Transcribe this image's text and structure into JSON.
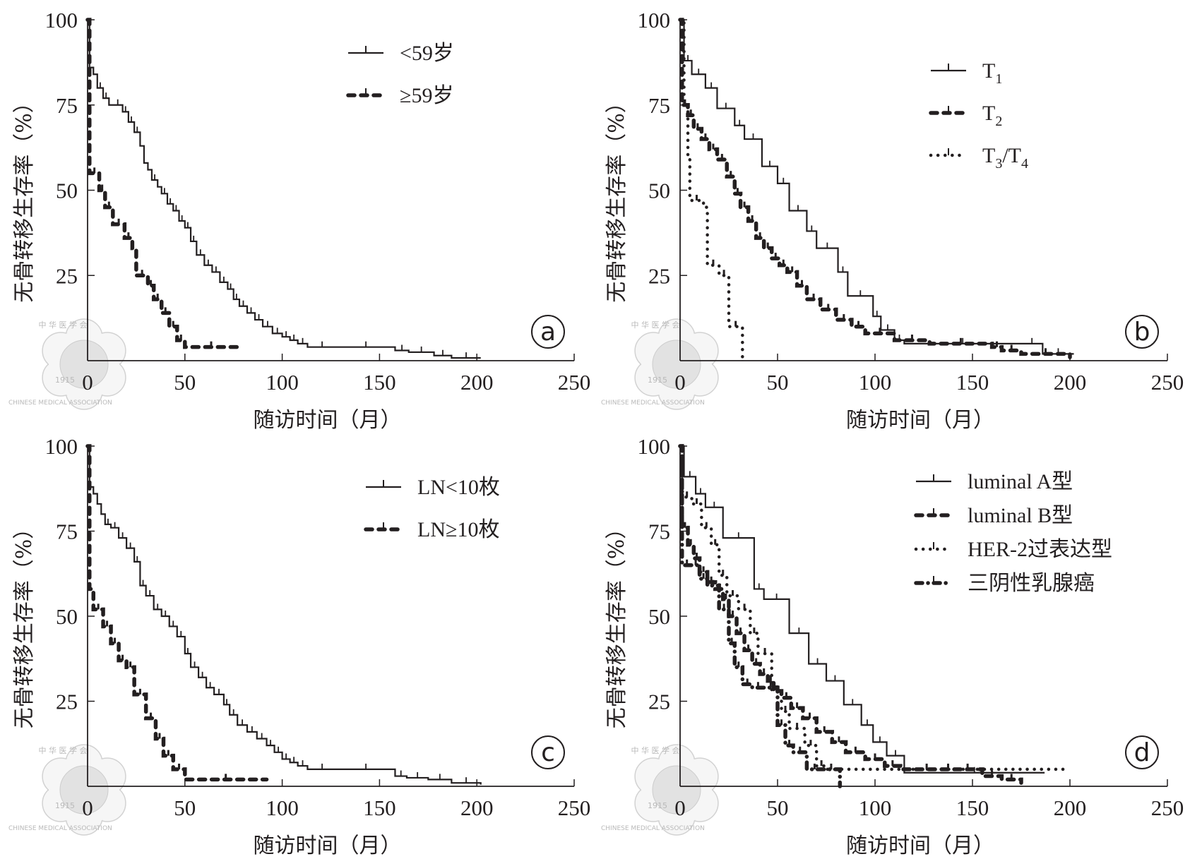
{
  "figure": {
    "y_axis_title": "无骨转移生存率（%）",
    "x_axis_title": "随访时间（月）",
    "watermark": {
      "top": "中 华 医 学 会",
      "bottom": "CHINESE MEDICAL ASSOCIATION",
      "year": "1915"
    }
  },
  "chart_data": [
    {
      "type": "line",
      "panel_label": "a",
      "title": "",
      "xlabel": "随访时间（月）",
      "ylabel": "无骨转移生存率（%）",
      "xlim": [
        0,
        250
      ],
      "ylim": [
        0,
        100
      ],
      "xticks": [
        0,
        50,
        100,
        150,
        200,
        250
      ],
      "yticks": [
        25,
        50,
        75,
        100
      ],
      "grid": false,
      "legend_position": "top-right",
      "series": [
        {
          "name": "<59岁",
          "style": "solid",
          "x": [
            0,
            1,
            3,
            5,
            8,
            11,
            13,
            18,
            21,
            24,
            27,
            29,
            31,
            33,
            36,
            38,
            41,
            44,
            47,
            50,
            53,
            56,
            60,
            64,
            68,
            72,
            75,
            78,
            82,
            86,
            90,
            95,
            100,
            104,
            108,
            113,
            128,
            158,
            165,
            178,
            187,
            202
          ],
          "y": [
            100,
            86,
            84,
            80,
            77,
            75,
            75,
            73,
            70,
            67,
            63,
            58,
            56,
            53,
            51,
            49,
            46,
            44,
            41,
            39,
            35,
            31,
            28,
            26,
            23,
            21,
            18,
            16,
            14,
            12,
            10,
            8,
            7,
            6,
            5,
            4,
            4,
            3,
            2.5,
            1.5,
            0.8,
            0.8
          ]
        },
        {
          "name": "≥59岁",
          "style": "dashed",
          "x": [
            0,
            1,
            6,
            9,
            13,
            19,
            23,
            25,
            31,
            34,
            38,
            42,
            46,
            50,
            77
          ],
          "y": [
            100,
            55,
            50,
            45,
            40,
            36,
            33,
            25,
            22,
            18,
            14,
            10,
            6,
            4,
            4
          ]
        }
      ]
    },
    {
      "type": "line",
      "panel_label": "b",
      "title": "",
      "xlabel": "随访时间（月）",
      "ylabel": "无骨转移生存率（%）",
      "xlim": [
        0,
        250
      ],
      "ylim": [
        0,
        100
      ],
      "xticks": [
        0,
        50,
        100,
        150,
        200,
        250
      ],
      "yticks": [
        25,
        50,
        75,
        100
      ],
      "grid": false,
      "legend_position": "top-right",
      "series": [
        {
          "name": "T1",
          "name_main": "T",
          "name_sub": "1",
          "style": "solid",
          "x": [
            0,
            2,
            6,
            13,
            19,
            28,
            33,
            42,
            50,
            56,
            65,
            70,
            81,
            86,
            99,
            103,
            110,
            115,
            175,
            186,
            202
          ],
          "y": [
            100,
            88,
            84,
            80,
            74,
            69,
            65,
            57,
            52,
            44,
            38,
            33,
            26,
            19,
            13,
            9,
            6,
            5,
            5,
            2,
            2
          ]
        },
        {
          "name": "T2",
          "name_main": "T",
          "name_sub": "2",
          "style": "dashed",
          "x": [
            0,
            1,
            4,
            7,
            11,
            15,
            19,
            24,
            28,
            31,
            35,
            39,
            43,
            47,
            51,
            55,
            60,
            65,
            72,
            80,
            88,
            95,
            110,
            128,
            160,
            165,
            175,
            200
          ],
          "y": [
            100,
            75,
            72,
            68,
            65,
            62,
            59,
            54,
            49,
            45,
            41,
            36,
            33,
            30,
            28,
            26,
            22,
            18,
            15,
            12,
            10,
            8,
            6,
            5,
            4,
            3,
            2,
            1
          ]
        },
        {
          "name": "T3/T4",
          "name_main": "T",
          "name_sub": "3",
          "name_mid": "/T",
          "name_sub2": "4",
          "style": "dotted",
          "x": [
            0,
            2,
            4,
            5,
            12,
            14,
            20,
            25,
            32
          ],
          "y": [
            100,
            75,
            60,
            47,
            45,
            28,
            25,
            10,
            1
          ]
        }
      ]
    },
    {
      "type": "line",
      "panel_label": "c",
      "title": "",
      "xlabel": "随访时间（月）",
      "ylabel": "无骨转移生存率（%）",
      "xlim": [
        0,
        250
      ],
      "ylim": [
        0,
        100
      ],
      "xticks": [
        0,
        50,
        100,
        150,
        200,
        250
      ],
      "yticks": [
        25,
        50,
        75,
        100
      ],
      "grid": false,
      "legend_position": "top-right",
      "series": [
        {
          "name": "LN<10枚",
          "style": "solid",
          "x": [
            0,
            1,
            3,
            5,
            7,
            9,
            12,
            16,
            20,
            24,
            27,
            30,
            34,
            38,
            42,
            46,
            50,
            53,
            57,
            61,
            65,
            70,
            73,
            77,
            82,
            87,
            92,
            96,
            100,
            104,
            108,
            113,
            128,
            158,
            164,
            175,
            187,
            202
          ],
          "y": [
            100,
            88,
            86,
            83,
            80,
            77,
            76,
            73,
            70,
            66,
            59,
            56,
            52,
            50,
            47,
            44,
            39,
            35,
            32,
            29,
            27,
            24,
            21,
            18,
            16,
            14,
            12,
            10,
            8,
            7,
            6,
            5,
            5,
            3,
            2.5,
            2,
            1,
            0.5
          ]
        },
        {
          "name": "LN≥10枚",
          "style": "dashed",
          "x": [
            0,
            1,
            3,
            8,
            12,
            16,
            20,
            24,
            30,
            35,
            39,
            44,
            50,
            92
          ],
          "y": [
            100,
            58,
            52,
            47,
            42,
            37,
            35,
            27,
            20,
            14,
            9,
            5,
            2,
            2
          ]
        }
      ]
    },
    {
      "type": "line",
      "panel_label": "d",
      "title": "",
      "xlabel": "随访时间（月）",
      "ylabel": "无骨转移生存率（%）",
      "xlim": [
        0,
        250
      ],
      "ylim": [
        0,
        100
      ],
      "xticks": [
        0,
        50,
        100,
        150,
        200,
        250
      ],
      "yticks": [
        25,
        50,
        75,
        100
      ],
      "grid": false,
      "legend_position": "top-right",
      "series": [
        {
          "name": "luminal A型",
          "style": "solid",
          "x": [
            0,
            2,
            8,
            13,
            22,
            38,
            43,
            56,
            66,
            75,
            84,
            93,
            99,
            106,
            115,
            187
          ],
          "y": [
            100,
            91,
            86,
            82,
            73,
            58,
            55,
            45,
            36,
            31,
            24,
            18,
            13,
            9,
            4,
            4
          ]
        },
        {
          "name": "luminal B型",
          "style": "dashed",
          "x": [
            0,
            1,
            4,
            7,
            10,
            14,
            18,
            22,
            25,
            29,
            33,
            37,
            41,
            45,
            48,
            52,
            57,
            63,
            70,
            78,
            85,
            95,
            105,
            113,
            140,
            155,
            165,
            175
          ],
          "y": [
            100,
            76,
            71,
            67,
            63,
            60,
            58,
            55,
            50,
            45,
            40,
            36,
            33,
            31,
            28,
            26,
            23,
            20,
            16,
            13,
            10,
            8,
            6,
            5,
            5,
            3,
            2,
            1
          ]
        },
        {
          "name": "HER-2过表达型",
          "style": "dotted",
          "x": [
            0,
            1,
            6,
            11,
            16,
            20,
            24,
            30,
            36,
            40,
            47,
            52,
            56,
            64,
            70,
            75,
            200
          ],
          "y": [
            100,
            85,
            83,
            76,
            71,
            62,
            56,
            52,
            45,
            39,
            28,
            22,
            17,
            12,
            6,
            5,
            5
          ]
        },
        {
          "name": "三阴性乳腺癌",
          "style": "dashdot",
          "x": [
            0,
            1,
            6,
            10,
            14,
            20,
            25,
            28,
            32,
            37,
            43,
            50,
            54,
            58,
            65,
            73,
            82
          ],
          "y": [
            100,
            65,
            65,
            61,
            59,
            52,
            42,
            35,
            30,
            29,
            29,
            18,
            12,
            10,
            5,
            5,
            0
          ]
        }
      ]
    }
  ]
}
